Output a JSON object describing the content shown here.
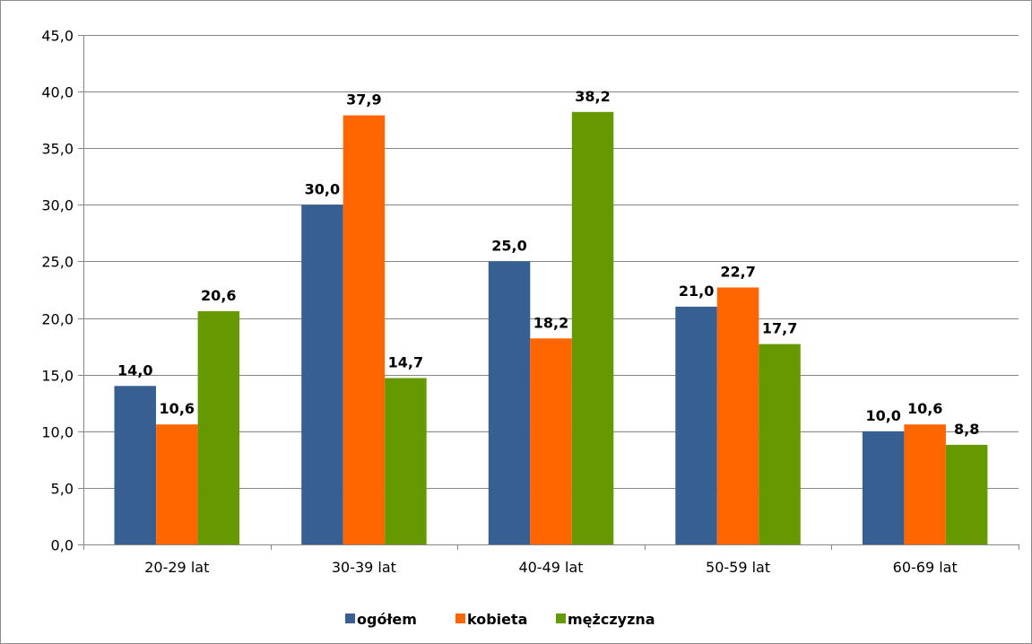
{
  "chart_data": {
    "type": "bar",
    "categories": [
      "20-29 lat",
      "30-39 lat",
      "40-49 lat",
      "50-59 lat",
      "60-69 lat"
    ],
    "series": [
      {
        "name": "ogółem",
        "color": "#375F92",
        "values": [
          14.0,
          30.0,
          25.0,
          21.0,
          10.0
        ],
        "labels": [
          "14,0",
          "30,0",
          "25,0",
          "21,0",
          "10,0"
        ]
      },
      {
        "name": "kobieta",
        "color": "#FF6600",
        "values": [
          10.6,
          37.9,
          18.2,
          22.7,
          10.6
        ],
        "labels": [
          "10,6",
          "37,9",
          "18,2",
          "22,7",
          "10,6"
        ]
      },
      {
        "name": "mężczyzna",
        "color": "#669900",
        "values": [
          20.6,
          14.7,
          38.2,
          17.7,
          8.8
        ],
        "labels": [
          "20,6",
          "14,7",
          "38,2",
          "17,7",
          "8,8"
        ]
      }
    ],
    "ylim": [
      0,
      45
    ],
    "yticks": [
      0,
      5,
      10,
      15,
      20,
      25,
      30,
      35,
      40,
      45
    ],
    "ytick_labels": [
      "0,0",
      "5,0",
      "10,0",
      "15,0",
      "20,0",
      "25,0",
      "30,0",
      "35,0",
      "40,0",
      "45,0"
    ],
    "grid": true,
    "legend_position": "bottom",
    "title": "",
    "xlabel": "",
    "ylabel": ""
  }
}
